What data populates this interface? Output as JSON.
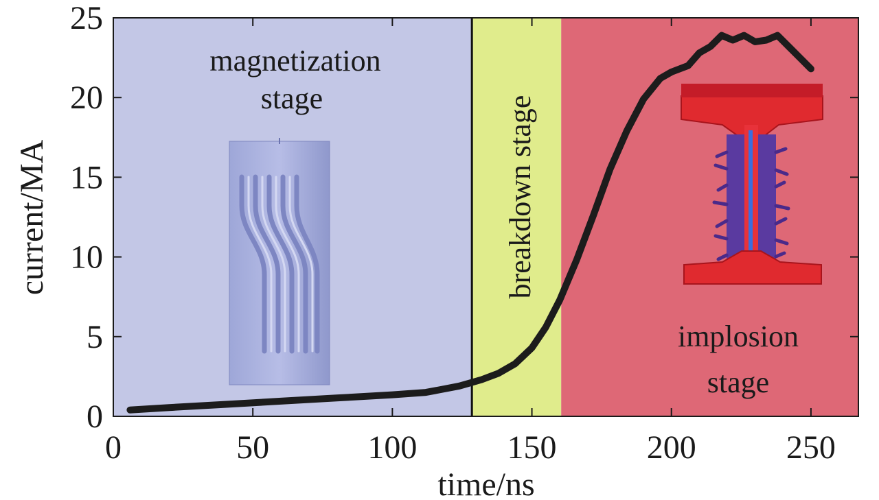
{
  "chart_data": {
    "type": "line",
    "xlabel": "time/ns",
    "ylabel": "current/MA",
    "xlim": [
      0,
      267
    ],
    "ylim": [
      0,
      25
    ],
    "x_ticks": [
      0,
      50,
      100,
      150,
      200,
      250
    ],
    "y_ticks": [
      0,
      5,
      10,
      15,
      20,
      25
    ],
    "grid": false,
    "series": [
      {
        "color": "#1c1c1c",
        "x": [
          6,
          20,
          40,
          60,
          80,
          100,
          112,
          118,
          124,
          128,
          132,
          138,
          144,
          150,
          155,
          160,
          166,
          172,
          178,
          184,
          190,
          196,
          200,
          206,
          210,
          214,
          218,
          222,
          226,
          230,
          234,
          238,
          242,
          246,
          250
        ],
        "y": [
          0.4,
          0.55,
          0.75,
          0.95,
          1.15,
          1.35,
          1.5,
          1.7,
          1.9,
          2.1,
          2.3,
          2.7,
          3.3,
          4.3,
          5.6,
          7.3,
          9.8,
          12.6,
          15.5,
          17.9,
          19.9,
          21.2,
          21.6,
          22.0,
          22.8,
          23.2,
          23.9,
          23.6,
          23.9,
          23.5,
          23.6,
          23.9,
          23.2,
          22.5,
          21.8
        ]
      }
    ],
    "stages": [
      {
        "label_lines": [
          "magnetization",
          "stage"
        ],
        "x_start": 0,
        "x_end": 128.5,
        "color": "#c3c7e6"
      },
      {
        "label_lines": [
          "breakdown stage"
        ],
        "x_start": 128.5,
        "x_end": 160.5,
        "color": "#e0ec8c"
      },
      {
        "label_lines": [
          "implosion",
          "stage"
        ],
        "x_start": 160.5,
        "x_end": 267,
        "color": "#de6876"
      }
    ]
  }
}
